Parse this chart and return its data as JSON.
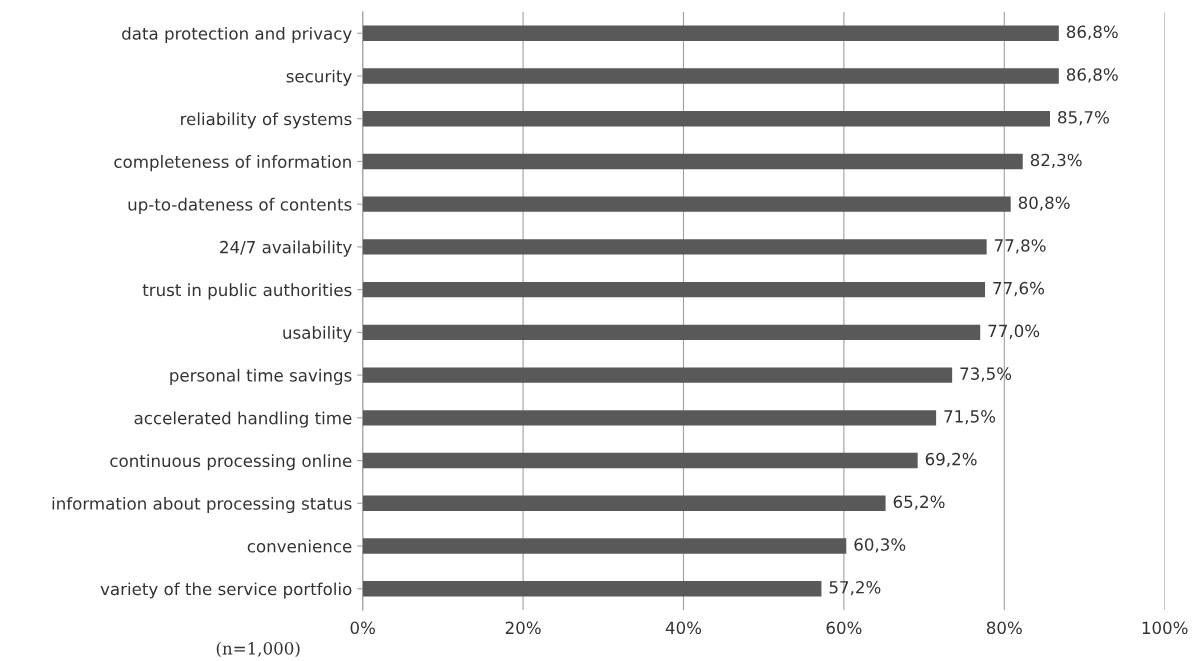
{
  "chart_data": {
    "type": "bar",
    "orientation": "horizontal",
    "categories": [
      "data protection and privacy",
      "security",
      "reliability of systems",
      "completeness of information",
      "up-to-dateness of contents",
      "24/7 availability",
      "trust in public authorities",
      "usability",
      "personal time savings",
      "accelerated handling time",
      "continuous processing online",
      "information about processing status",
      "convenience",
      "variety of the service portfolio"
    ],
    "values": [
      86.8,
      86.8,
      85.7,
      82.3,
      80.8,
      77.8,
      77.6,
      77.0,
      73.5,
      71.5,
      69.2,
      65.2,
      60.3,
      57.2
    ],
    "value_labels": [
      "86,8%",
      "86,8%",
      "85,7%",
      "82,3%",
      "80,8%",
      "77,8%",
      "77,6%",
      "77,0%",
      "73,5%",
      "71,5%",
      "69,2%",
      "65,2%",
      "60,3%",
      "57,2%"
    ],
    "color": "#595959",
    "xlim": [
      0,
      100
    ],
    "xticks": [
      {
        "value": 0,
        "label": "0%"
      },
      {
        "value": 20,
        "label": "20%"
      },
      {
        "value": 40,
        "label": "40%"
      },
      {
        "value": 60,
        "label": "60%"
      },
      {
        "value": 80,
        "label": "80%"
      },
      {
        "value": 100,
        "label": "100%"
      }
    ],
    "grid": "x",
    "annotations": [
      "(n=1,000)"
    ]
  }
}
